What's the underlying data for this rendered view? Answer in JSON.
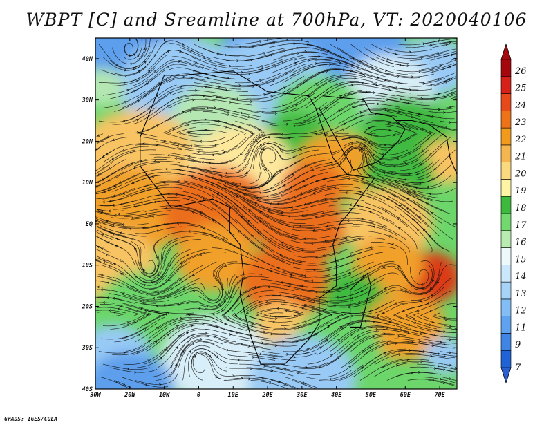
{
  "title": "WBPT [C] and Sreamline at 700hPa, VT: 2020040106",
  "credit": "GrADS: IGES/COLA",
  "map": {
    "lon_range": [
      -30,
      75
    ],
    "lat_range": [
      -40,
      45
    ],
    "lat_ticks": [
      {
        "value": 40,
        "label": "40N"
      },
      {
        "value": 30,
        "label": "30N"
      },
      {
        "value": 20,
        "label": "20N"
      },
      {
        "value": 10,
        "label": "10N"
      },
      {
        "value": 0,
        "label": "EQ"
      },
      {
        "value": -10,
        "label": "10S"
      },
      {
        "value": -20,
        "label": "20S"
      },
      {
        "value": -30,
        "label": "30S"
      },
      {
        "value": -40,
        "label": "40S"
      }
    ],
    "lon_ticks": [
      {
        "value": -30,
        "label": "30W"
      },
      {
        "value": -20,
        "label": "20W"
      },
      {
        "value": -10,
        "label": "10W"
      },
      {
        "value": 0,
        "label": "0"
      },
      {
        "value": 10,
        "label": "10E"
      },
      {
        "value": 20,
        "label": "20E"
      },
      {
        "value": 30,
        "label": "30E"
      },
      {
        "value": 40,
        "label": "40E"
      },
      {
        "value": 50,
        "label": "50E"
      },
      {
        "value": 60,
        "label": "60E"
      },
      {
        "value": 70,
        "label": "70E"
      }
    ]
  },
  "colorbar": {
    "levels": [
      {
        "label": "7",
        "color": "#1f63d6"
      },
      {
        "label": "9",
        "color": "#3f85e6"
      },
      {
        "label": "11",
        "color": "#5fa2ef"
      },
      {
        "label": "12",
        "color": "#82bdf5"
      },
      {
        "label": "13",
        "color": "#a6d4f8"
      },
      {
        "label": "14",
        "color": "#cbe7fb"
      },
      {
        "label": "15",
        "color": "#eef9fb"
      },
      {
        "label": "16",
        "color": "#b8ecb0"
      },
      {
        "label": "17",
        "color": "#72d96e"
      },
      {
        "label": "18",
        "color": "#3dba3d"
      },
      {
        "label": "19",
        "color": "#fff4a4"
      },
      {
        "label": "20",
        "color": "#fbd97e"
      },
      {
        "label": "21",
        "color": "#f6b64f"
      },
      {
        "label": "22",
        "color": "#f29a1c"
      },
      {
        "label": "23",
        "color": "#ee7318"
      },
      {
        "label": "24",
        "color": "#e8491a"
      },
      {
        "label": "25",
        "color": "#d72118"
      },
      {
        "label": "26",
        "color": "#a6070c"
      }
    ],
    "low_arrow_color": "#2a5fd4",
    "high_arrow_color": "#a6070c"
  },
  "field_palette": [
    "#2f6fda",
    "#5d9fec",
    "#98caf5",
    "#d8eef8",
    "#b4e7b2",
    "#6cd66a",
    "#3fba40",
    "#fde89c",
    "#f8c463",
    "#f1a02b",
    "#eb6e1b",
    "#dc3a17"
  ],
  "regions": [
    {
      "lon": -12,
      "lat": 41,
      "level": 0,
      "r": 10
    },
    {
      "lon": -25,
      "lat": 43,
      "level": 1,
      "r": 8
    },
    {
      "lon": 22,
      "lat": 42,
      "level": 1,
      "r": 12
    },
    {
      "lon": 45,
      "lat": 42,
      "level": 1,
      "r": 12
    },
    {
      "lon": 68,
      "lat": 38,
      "level": 2,
      "r": 8
    },
    {
      "lon": -5,
      "lat": 33,
      "level": 2,
      "r": 14
    },
    {
      "lon": 20,
      "lat": 33,
      "level": 2,
      "r": 14
    },
    {
      "lon": 55,
      "lat": 32,
      "level": 3,
      "r": 10
    },
    {
      "lon": -28,
      "lat": 33,
      "level": 4,
      "r": 5
    },
    {
      "lon": 35,
      "lat": 27,
      "level": 5,
      "r": 10
    },
    {
      "lon": 5,
      "lat": 25,
      "level": 4,
      "r": 10
    },
    {
      "lon": 60,
      "lat": 22,
      "level": 6,
      "r": 10
    },
    {
      "lon": 28,
      "lat": 20,
      "level": 6,
      "r": 8
    },
    {
      "lon": -18,
      "lat": 15,
      "level": 8,
      "r": 14
    },
    {
      "lon": 12,
      "lat": 13,
      "level": 7,
      "r": 12
    },
    {
      "lon": 40,
      "lat": 14,
      "level": 9,
      "r": 9
    },
    {
      "lon": 72,
      "lat": 15,
      "level": 8,
      "r": 6
    },
    {
      "lon": 33,
      "lat": 9,
      "level": 10,
      "r": 7
    },
    {
      "lon": 58,
      "lat": 12,
      "level": 6,
      "r": 8
    },
    {
      "lon": -20,
      "lat": 3,
      "level": 9,
      "r": 12
    },
    {
      "lon": 5,
      "lat": 3,
      "level": 10,
      "r": 12
    },
    {
      "lon": 30,
      "lat": -1,
      "level": 10,
      "r": 10
    },
    {
      "lon": 55,
      "lat": 0,
      "level": 8,
      "r": 10
    },
    {
      "lon": -25,
      "lat": -10,
      "level": 8,
      "r": 10
    },
    {
      "lon": 5,
      "lat": -8,
      "level": 9,
      "r": 9
    },
    {
      "lon": 25,
      "lat": -14,
      "level": 10,
      "r": 10
    },
    {
      "lon": 67,
      "lat": -13,
      "level": 11,
      "r": 7
    },
    {
      "lon": 55,
      "lat": -10,
      "level": 9,
      "r": 8
    },
    {
      "lon": 45,
      "lat": -18,
      "level": 6,
      "r": 7
    },
    {
      "lon": 24,
      "lat": -24,
      "level": 8,
      "r": 6
    },
    {
      "lon": -15,
      "lat": -22,
      "level": 5,
      "r": 12
    },
    {
      "lon": 60,
      "lat": -25,
      "level": 9,
      "r": 9
    },
    {
      "lon": 40,
      "lat": -30,
      "level": 5,
      "r": 10
    },
    {
      "lon": 5,
      "lat": -33,
      "level": 3,
      "r": 12
    },
    {
      "lon": -25,
      "lat": -33,
      "level": 2,
      "r": 9
    },
    {
      "lon": 72,
      "lat": -32,
      "level": 2,
      "r": 5
    },
    {
      "lon": 30,
      "lat": -38,
      "level": 2,
      "r": 12
    },
    {
      "lon": -20,
      "lat": -40,
      "level": 1,
      "r": 10
    }
  ],
  "vortices": [
    {
      "lon": -20,
      "lat": 42,
      "r": 6
    },
    {
      "lon": -14,
      "lat": -11,
      "r": 4
    },
    {
      "lon": 5,
      "lat": -17,
      "r": 3
    },
    {
      "lon": 0,
      "lat": -33,
      "r": 4
    },
    {
      "lon": 65,
      "lat": -13,
      "r": 4
    },
    {
      "lon": 46,
      "lat": 17,
      "r": 3
    },
    {
      "lon": 20,
      "lat": 17,
      "r": 3
    }
  ],
  "land_outlines": [
    [
      [
        -10,
        36
      ],
      [
        -17,
        21
      ],
      [
        -17,
        14
      ],
      [
        -8,
        4
      ],
      [
        4,
        6
      ],
      [
        9,
        4
      ],
      [
        9,
        -2
      ],
      [
        12,
        -5
      ],
      [
        13,
        -12
      ],
      [
        12,
        -17
      ],
      [
        15,
        -27
      ],
      [
        18,
        -34
      ],
      [
        25,
        -34
      ],
      [
        32,
        -28
      ],
      [
        35,
        -24
      ],
      [
        35,
        -18
      ],
      [
        40,
        -15
      ],
      [
        40,
        -10
      ],
      [
        39,
        -5
      ],
      [
        41,
        0
      ],
      [
        44,
        3
      ],
      [
        51,
        11
      ],
      [
        43,
        12
      ],
      [
        39,
        16
      ],
      [
        34,
        28
      ],
      [
        32,
        31
      ],
      [
        20,
        32
      ],
      [
        10,
        37
      ],
      [
        -5,
        36
      ],
      [
        -10,
        36
      ]
    ],
    [
      [
        44,
        -25
      ],
      [
        47,
        -25
      ],
      [
        50,
        -15
      ],
      [
        49,
        -12
      ],
      [
        44,
        -16
      ],
      [
        44,
        -25
      ]
    ],
    [
      [
        35,
        28
      ],
      [
        43,
        16
      ],
      [
        45,
        13
      ],
      [
        52,
        15
      ],
      [
        58,
        20
      ],
      [
        60,
        23
      ],
      [
        56,
        26
      ],
      [
        50,
        27
      ],
      [
        48,
        30
      ],
      [
        36,
        31
      ]
    ],
    [
      [
        57,
        25
      ],
      [
        62,
        25
      ],
      [
        67,
        24
      ],
      [
        72,
        21
      ],
      [
        73,
        16
      ],
      [
        76,
        10
      ],
      [
        75,
        45
      ]
    ]
  ]
}
